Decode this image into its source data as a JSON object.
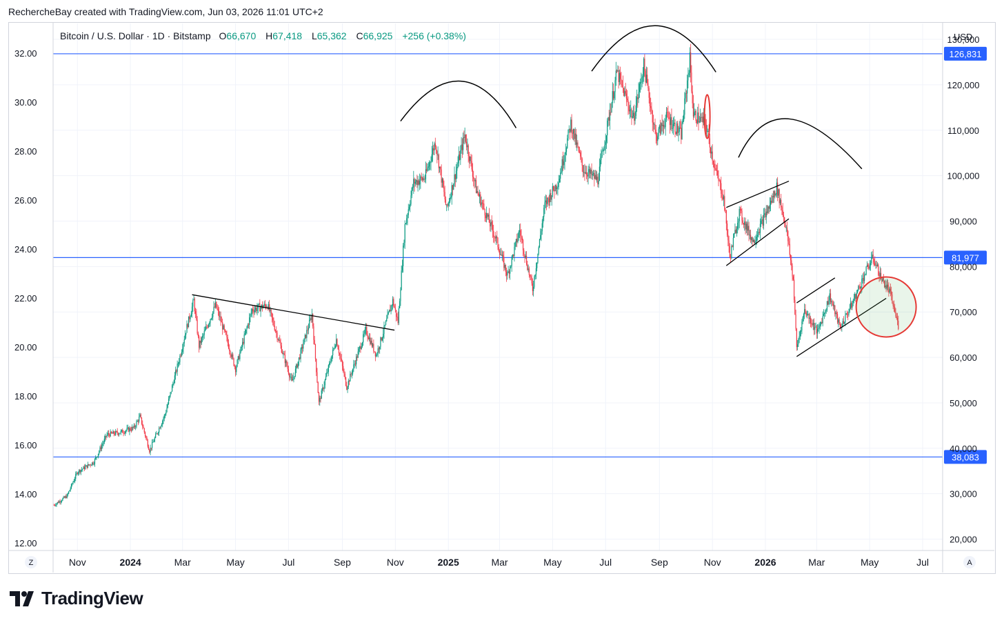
{
  "header": {
    "attribution": "RechercheBay created with TradingView.com, Jun 03, 2026 11:01 UTC+2"
  },
  "legend": {
    "symbol": "Bitcoin / U.S. Dollar · 1D · Bitstamp",
    "open_label": "O",
    "open": "66,670",
    "high_label": "H",
    "high": "67,418",
    "low_label": "L",
    "low": "65,362",
    "close_label": "C",
    "close": "66,925",
    "change": "+256 (+0.38%)"
  },
  "currency": "USD",
  "controls": {
    "left_button": "Z",
    "right_button": "A"
  },
  "brand": {
    "name": "TradingView"
  },
  "colors": {
    "up": "#089981",
    "down": "#f23645",
    "level_line": "#2962ff",
    "level_label_bg": "#2962ff",
    "annotation": "#000000",
    "circle": "#e53935"
  },
  "chart_data": {
    "type": "candlestick",
    "symbol": "BTCUSD",
    "timeframe": "1D",
    "y_axis_right": {
      "ticks": [
        "130,000",
        "120,000",
        "110,000",
        "100,000",
        "90,000",
        "80,000",
        "70,000",
        "60,000",
        "50,000",
        "40,000",
        "30,000",
        "20,000"
      ],
      "tick_values": [
        130000,
        120000,
        110000,
        100000,
        90000,
        80000,
        70000,
        60000,
        50000,
        40000,
        30000,
        20000
      ],
      "range": [
        17500,
        133500
      ]
    },
    "y_axis_left": {
      "ticks": [
        "32.00",
        "30.00",
        "28.00",
        "26.00",
        "24.00",
        "22.00",
        "20.00",
        "18.00",
        "16.00",
        "14.00",
        "12.00"
      ],
      "tick_values": [
        32,
        30,
        28,
        26,
        24,
        22,
        20,
        18,
        16,
        14,
        12
      ]
    },
    "x_axis": {
      "ticks": [
        {
          "label": "Nov",
          "date": "2023-11-01",
          "bold": false
        },
        {
          "label": "2024",
          "date": "2024-01-01",
          "bold": true
        },
        {
          "label": "Mar",
          "date": "2024-03-01",
          "bold": false
        },
        {
          "label": "May",
          "date": "2024-05-01",
          "bold": false
        },
        {
          "label": "Jul",
          "date": "2024-07-01",
          "bold": false
        },
        {
          "label": "Sep",
          "date": "2024-09-01",
          "bold": false
        },
        {
          "label": "Nov",
          "date": "2024-11-01",
          "bold": false
        },
        {
          "label": "2025",
          "date": "2025-01-01",
          "bold": true
        },
        {
          "label": "Mar",
          "date": "2025-03-01",
          "bold": false
        },
        {
          "label": "May",
          "date": "2025-05-01",
          "bold": false
        },
        {
          "label": "Jul",
          "date": "2025-07-01",
          "bold": false
        },
        {
          "label": "Sep",
          "date": "2025-09-01",
          "bold": false
        },
        {
          "label": "Nov",
          "date": "2025-11-01",
          "bold": false
        },
        {
          "label": "2026",
          "date": "2026-01-01",
          "bold": true
        },
        {
          "label": "Mar",
          "date": "2026-03-01",
          "bold": false
        },
        {
          "label": "May",
          "date": "2026-05-01",
          "bold": false
        },
        {
          "label": "Jul",
          "date": "2026-07-01",
          "bold": false
        }
      ],
      "range": [
        "2023-10-04",
        "2026-07-24"
      ]
    },
    "levels": [
      {
        "label": "126,831",
        "value": 126831
      },
      {
        "label": "81,977",
        "value": 81977
      },
      {
        "label": "38,083",
        "value": 38083
      }
    ],
    "price_path": [
      [
        "2023-10-05",
        27500
      ],
      [
        "2023-10-20",
        29500
      ],
      [
        "2023-11-01",
        34800
      ],
      [
        "2023-11-20",
        37000
      ],
      [
        "2023-12-05",
        43000
      ],
      [
        "2023-12-20",
        43500
      ],
      [
        "2024-01-05",
        44500
      ],
      [
        "2024-01-12",
        47000
      ],
      [
        "2024-01-23",
        39500
      ],
      [
        "2024-02-10",
        47500
      ],
      [
        "2024-02-28",
        61000
      ],
      [
        "2024-03-05",
        66000
      ],
      [
        "2024-03-14",
        72500
      ],
      [
        "2024-03-20",
        62500
      ],
      [
        "2024-04-08",
        71500
      ],
      [
        "2024-04-20",
        64500
      ],
      [
        "2024-05-01",
        57500
      ],
      [
        "2024-05-20",
        70500
      ],
      [
        "2024-06-07",
        71500
      ],
      [
        "2024-07-05",
        54500
      ],
      [
        "2024-07-28",
        69500
      ],
      [
        "2024-08-05",
        50000
      ],
      [
        "2024-08-25",
        64000
      ],
      [
        "2024-09-06",
        53500
      ],
      [
        "2024-09-28",
        66000
      ],
      [
        "2024-10-10",
        60500
      ],
      [
        "2024-10-29",
        72500
      ],
      [
        "2024-11-04",
        67800
      ],
      [
        "2024-11-12",
        89000
      ],
      [
        "2024-11-22",
        98500
      ],
      [
        "2024-12-05",
        99500
      ],
      [
        "2024-12-17",
        107500
      ],
      [
        "2024-12-30",
        92500
      ],
      [
        "2025-01-20",
        109000
      ],
      [
        "2025-02-02",
        97000
      ],
      [
        "2025-02-25",
        86000
      ],
      [
        "2025-03-10",
        78000
      ],
      [
        "2025-03-24",
        88000
      ],
      [
        "2025-04-08",
        75000
      ],
      [
        "2025-04-22",
        93500
      ],
      [
        "2025-05-08",
        99000
      ],
      [
        "2025-05-22",
        111500
      ],
      [
        "2025-06-05",
        101500
      ],
      [
        "2025-06-22",
        99000
      ],
      [
        "2025-07-14",
        122800
      ],
      [
        "2025-08-02",
        112500
      ],
      [
        "2025-08-14",
        124200
      ],
      [
        "2025-08-28",
        108500
      ],
      [
        "2025-09-10",
        113000
      ],
      [
        "2025-09-26",
        109000
      ],
      [
        "2025-10-06",
        125700
      ],
      [
        "2025-10-10",
        113500
      ],
      [
        "2025-10-24",
        111500
      ],
      [
        "2025-11-04",
        101500
      ],
      [
        "2025-11-14",
        95000
      ],
      [
        "2025-11-21",
        82000
      ],
      [
        "2025-12-02",
        92000
      ],
      [
        "2025-12-18",
        85500
      ],
      [
        "2026-01-06",
        93500
      ],
      [
        "2026-01-14",
        97500
      ],
      [
        "2026-01-25",
        88500
      ],
      [
        "2026-02-02",
        77000
      ],
      [
        "2026-02-06",
        62000
      ],
      [
        "2026-02-15",
        70500
      ],
      [
        "2026-03-02",
        65500
      ],
      [
        "2026-03-16",
        73500
      ],
      [
        "2026-03-28",
        66500
      ],
      [
        "2026-04-10",
        71500
      ],
      [
        "2026-04-28",
        79500
      ],
      [
        "2026-05-05",
        82000
      ],
      [
        "2026-05-14",
        77500
      ],
      [
        "2026-05-24",
        74500
      ],
      [
        "2026-06-03",
        66925
      ]
    ],
    "annotations": {
      "arcs": [
        {
          "start": [
            "2024-11-07",
            112000
          ],
          "peak": [
            "2025-01-15",
            120800
          ],
          "end": [
            "2025-03-20",
            110500
          ]
        },
        {
          "start": [
            "2025-06-15",
            123000
          ],
          "peak": [
            "2025-08-27",
            133000
          ],
          "end": [
            "2025-11-05",
            122800
          ]
        },
        {
          "start": [
            "2025-12-01",
            104000
          ],
          "peak": [
            "2026-01-28",
            112500
          ],
          "end": [
            "2026-04-22",
            101500
          ]
        }
      ],
      "trendlines": [
        {
          "from": [
            "2024-03-12",
            73800
          ],
          "to": [
            "2024-10-31",
            66000
          ]
        },
        {
          "from": [
            "2025-11-17",
            93000
          ],
          "to": [
            "2026-01-28",
            98800
          ]
        },
        {
          "from": [
            "2025-11-17",
            80200
          ],
          "to": [
            "2026-01-28",
            90500
          ]
        },
        {
          "from": [
            "2026-02-06",
            72000
          ],
          "to": [
            "2026-03-22",
            77500
          ]
        },
        {
          "from": [
            "2026-02-06",
            60200
          ],
          "to": [
            "2026-05-20",
            73000
          ]
        }
      ],
      "small_ellipse": {
        "center": [
          "2025-10-26",
          113000
        ],
        "value_span": [
          108200,
          117800
        ]
      },
      "circle": {
        "center": [
          "2026-05-20",
          71000
        ],
        "value_span": [
          64500,
          77700
        ]
      }
    }
  }
}
